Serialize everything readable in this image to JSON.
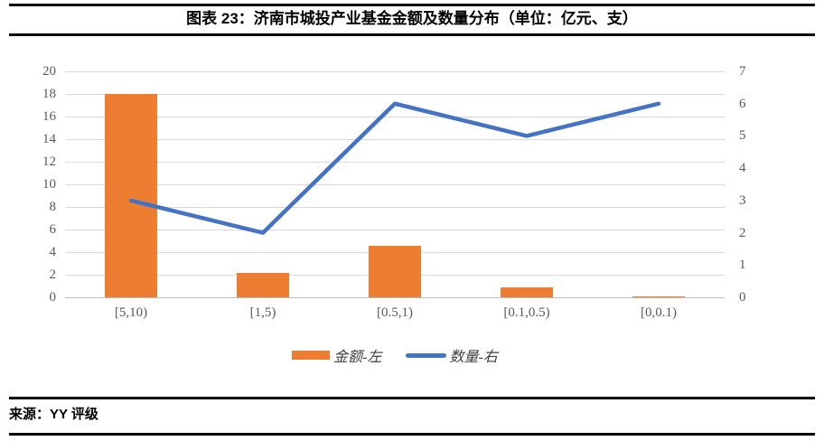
{
  "figure": {
    "title": "图表 23：济南市城投产业基金金额及数量分布（单位：亿元、支）",
    "source": "来源：YY 评级"
  },
  "chart_data": {
    "type": "bar",
    "subtype": "combo-bar-line",
    "title": "图表 23：济南市城投产业基金金额及数量分布（单位：亿元、支）",
    "categories": [
      "[5,10)",
      "[1,5)",
      "[0.5,1)",
      "[0.1,0.5)",
      "[0,0.1)"
    ],
    "series": [
      {
        "name": "金额-左",
        "type": "bar",
        "axis": "left",
        "color": "#ED7D31",
        "values": [
          18,
          2.2,
          4.6,
          0.9,
          0.05
        ]
      },
      {
        "name": "数量-右",
        "type": "line",
        "axis": "right",
        "color": "#4472C4",
        "values": [
          3,
          2,
          6,
          5,
          6
        ]
      }
    ],
    "left_axis": {
      "min": 0,
      "max": 20,
      "ticks": [
        0,
        2,
        4,
        6,
        8,
        10,
        12,
        14,
        16,
        18,
        20
      ]
    },
    "right_axis": {
      "min": 0,
      "max": 7,
      "ticks": [
        0,
        1,
        2,
        3,
        4,
        5,
        6,
        7
      ]
    },
    "grid": "horizontal gridlines aligned to left-axis ticks",
    "legend_position": "bottom-center",
    "colors": {
      "grid": "#D9D9D9",
      "axis_line": "#BFBFBF",
      "tick_text": "#595959"
    }
  }
}
